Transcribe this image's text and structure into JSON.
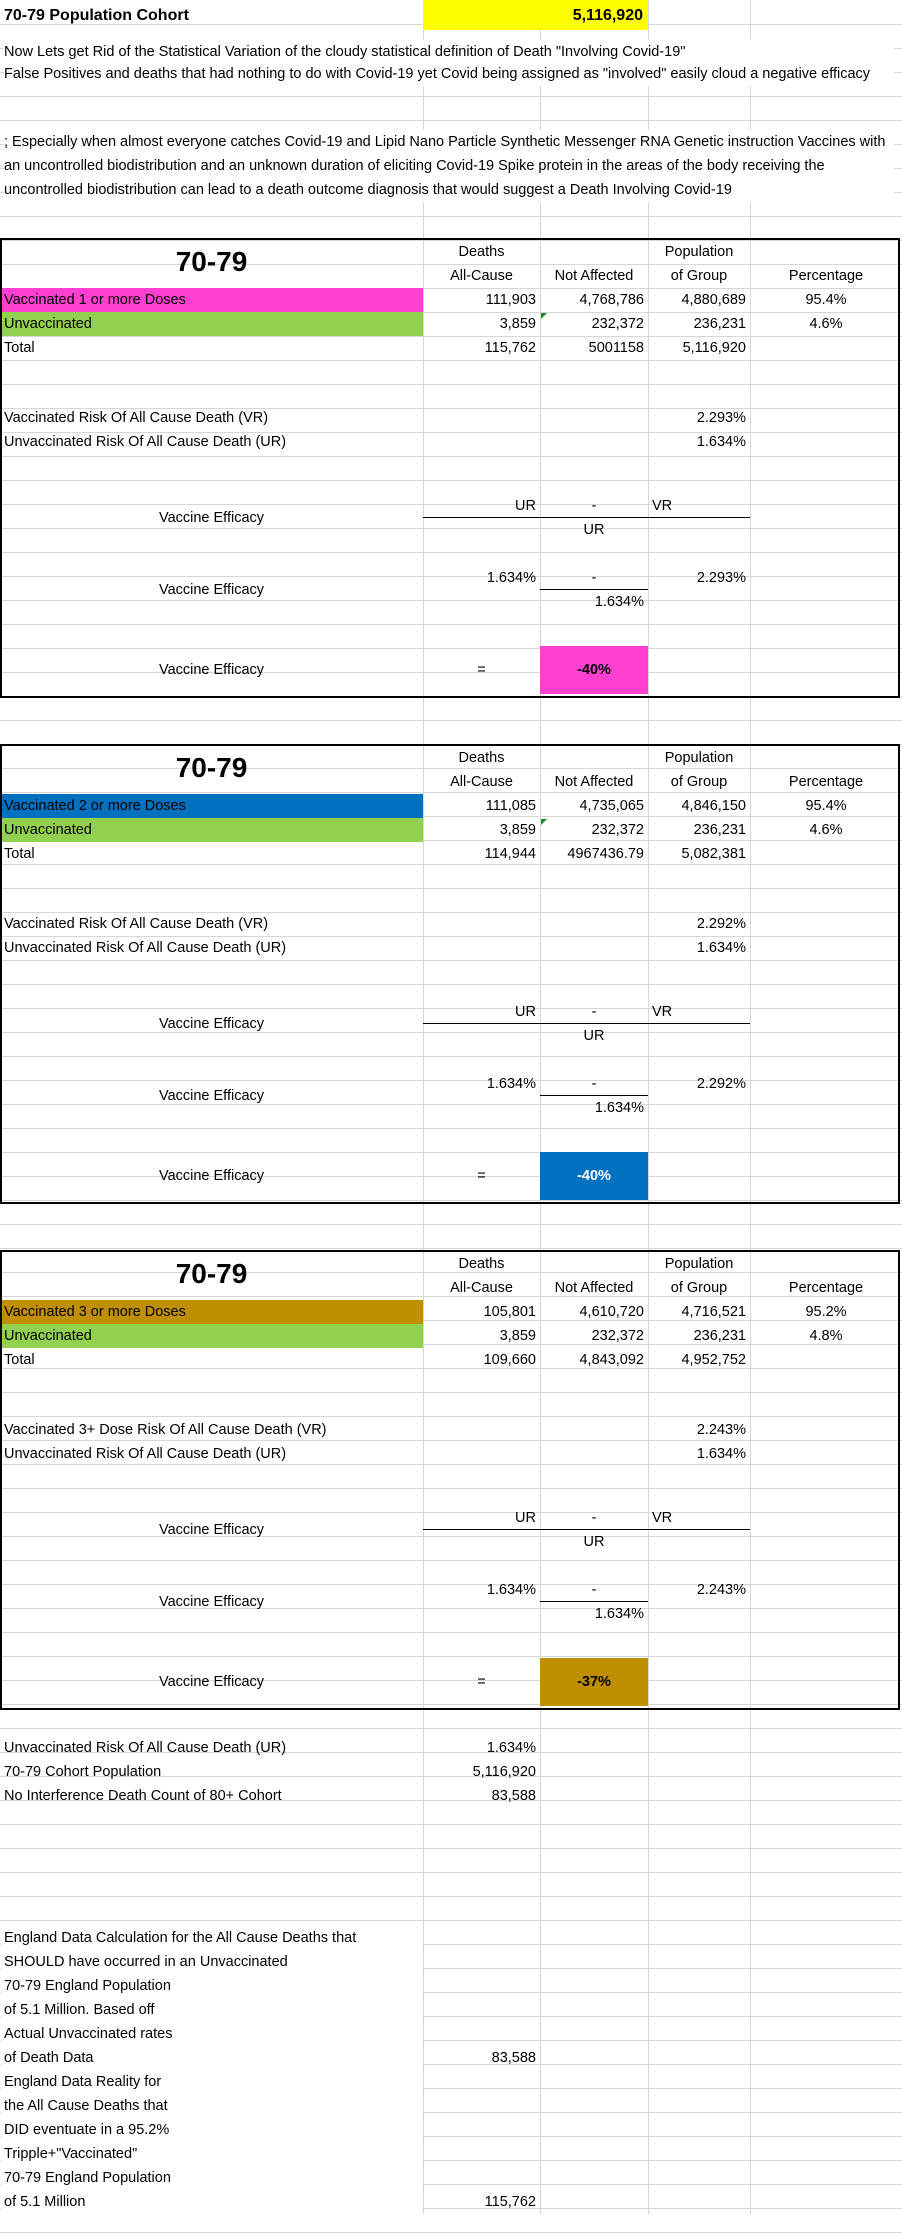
{
  "header": {
    "title": "70-79 Population Cohort",
    "population": "5,116,920"
  },
  "intro": {
    "p1": "Now Lets get Rid of the Statistical Variation of the cloudy statistical definition of Death \"Involving Covid-19\"",
    "p2": "False Positives and deaths that had nothing to do with Covid-19 yet Covid being assigned as \"involved\" easily cloud a negative efficacy",
    "p3": "; Especially when almost everyone catches Covid-19 and Lipid Nano Particle Synthetic Messenger RNA Genetic instruction Vaccines with an uncontrolled biodistribution and an unknown duration of eliciting Covid-19 Spike protein in the areas of the body receiving the uncontrolled biodistribution can lead to a death outcome diagnosis that would suggest a Death Involving Covid-19"
  },
  "colors": {
    "pink": "#ff3fcf",
    "green": "#92d050",
    "blue": "#0070c0",
    "gold": "#bf8f00",
    "yellow": "#ffff00"
  },
  "sections": [
    {
      "cohort": "70-79",
      "col_deaths_1": "Deaths",
      "col_deaths_2": "All-Cause",
      "col_not": "Not Affected",
      "col_pop_1": "Population",
      "col_pop_2": "of Group",
      "col_pct": "Percentage",
      "vax_label": "Vaccinated 1 or more Doses",
      "vax_deaths": "111,903",
      "vax_not": "4,768,786",
      "vax_pop": "4,880,689",
      "vax_pct": "95.4%",
      "unvax_label": "Unvaccinated",
      "unvax_deaths": "3,859",
      "unvax_not": "232,372",
      "unvax_pop": "236,231",
      "unvax_pct": "4.6%",
      "total_label": "Total",
      "total_deaths": "115,762",
      "total_not": "5001158",
      "total_pop": "5,116,920",
      "vr_label": "Vaccinated Risk Of All Cause Death (VR)",
      "vr_value": "2.293%",
      "ur_label": "Unvaccinated Risk Of All Cause Death (UR)",
      "ur_value": "1.634%",
      "ve_label": "Vaccine Efficacy",
      "f_ur": "UR",
      "f_minus": "-",
      "f_vr": "VR",
      "f_den": "UR",
      "n_ur": "1.634%",
      "n_minus": "-",
      "n_vr": "2.293%",
      "n_den": "1.634%",
      "eq": "=",
      "result": "-40%"
    },
    {
      "cohort": "70-79",
      "col_deaths_1": "Deaths",
      "col_deaths_2": "All-Cause",
      "col_not": "Not Affected",
      "col_pop_1": "Population",
      "col_pop_2": "of Group",
      "col_pct": "Percentage",
      "vax_label": "Vaccinated 2 or more Doses",
      "vax_deaths": "111,085",
      "vax_not": "4,735,065",
      "vax_pop": "4,846,150",
      "vax_pct": "95.4%",
      "unvax_label": "Unvaccinated",
      "unvax_deaths": "3,859",
      "unvax_not": "232,372",
      "unvax_pop": "236,231",
      "unvax_pct": "4.6%",
      "total_label": "Total",
      "total_deaths": "114,944",
      "total_not": "4967436.79",
      "total_pop": "5,082,381",
      "vr_label": "Vaccinated Risk Of All Cause Death (VR)",
      "vr_value": "2.292%",
      "ur_label": "Unvaccinated Risk Of All Cause Death (UR)",
      "ur_value": "1.634%",
      "ve_label": "Vaccine Efficacy",
      "f_ur": "UR",
      "f_minus": "-",
      "f_vr": "VR",
      "f_den": "UR",
      "n_ur": "1.634%",
      "n_minus": "-",
      "n_vr": "2.292%",
      "n_den": "1.634%",
      "eq": "=",
      "result": "-40%"
    },
    {
      "cohort": "70-79",
      "col_deaths_1": "Deaths",
      "col_deaths_2": "All-Cause",
      "col_not": "Not Affected",
      "col_pop_1": "Population",
      "col_pop_2": "of Group",
      "col_pct": "Percentage",
      "vax_label": "Vaccinated 3 or more Doses",
      "vax_deaths": "105,801",
      "vax_not": "4,610,720",
      "vax_pop": "4,716,521",
      "vax_pct": "95.2%",
      "unvax_label": "Unvaccinated",
      "unvax_deaths": "3,859",
      "unvax_not": "232,372",
      "unvax_pop": "236,231",
      "unvax_pct": "4.8%",
      "total_label": "Total",
      "total_deaths": "109,660",
      "total_not": "4,843,092",
      "total_pop": "4,952,752",
      "vr_label": "Vaccinated 3+ Dose Risk Of All Cause Death (VR)",
      "vr_value": "2.243%",
      "ur_label": "Unvaccinated Risk Of All Cause Death (UR)",
      "ur_value": "1.634%",
      "ve_label": "Vaccine Efficacy",
      "f_ur": "UR",
      "f_minus": "-",
      "f_vr": "VR",
      "f_den": "UR",
      "n_ur": "1.634%",
      "n_minus": "-",
      "n_vr": "2.243%",
      "n_den": "1.634%",
      "eq": "=",
      "result": "-37%"
    }
  ],
  "summary": {
    "ur_label": "Unvaccinated Risk Of All Cause Death (UR)",
    "ur_value": "1.634%",
    "pop_label": "70-79 Cohort Population",
    "pop_value": "5,116,920",
    "nid_label": "No Interference Death Count of 80+ Cohort",
    "nid_value": "83,588"
  },
  "england_calc": {
    "lines": [
      "England Data Calculation for the All Cause Deaths that",
      "SHOULD have occurred in an Unvaccinated",
      "70-79 England Population",
      "of 5.1 Million. Based off",
      "Actual Unvaccinated rates",
      " of Death Data"
    ],
    "value": "83,588"
  },
  "england_reality": {
    "lines": [
      "England Data Reality for",
      "  the All Cause Deaths that",
      "  DID eventuate in a  95.2%",
      "Tripple+\"Vaccinated\"",
      "70-79 England Population",
      "of 5.1 Million"
    ],
    "value": "115,762"
  }
}
